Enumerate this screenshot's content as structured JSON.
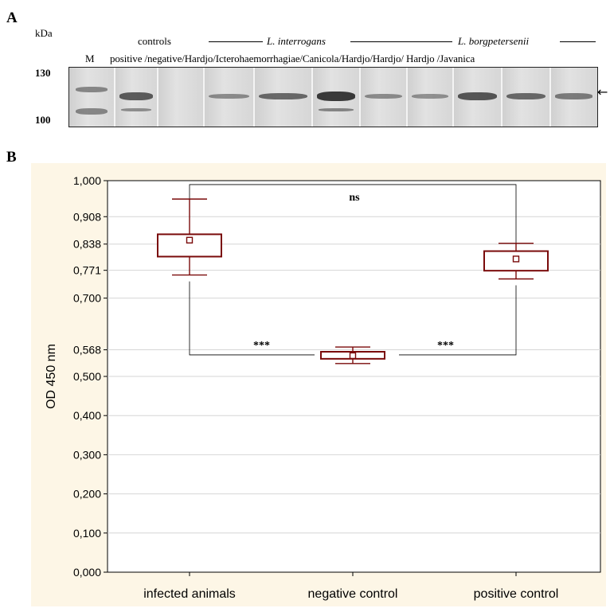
{
  "panel_a": {
    "letter": "A",
    "unit": "kDa",
    "marker_label": "M",
    "controls_label": "controls",
    "species_left": "L. interrogans",
    "species_right": "L. borgpetersenii",
    "lane_labels": "positive /negative/Hardjo/Icterohaemorrhagiae/Canicola/Hardjo/Hardjo/ Hardjo /Javanica",
    "mw_high": "130",
    "mw_low": "100",
    "arrow": "←",
    "band_intensity": [
      0.7,
      0.0,
      0.35,
      0.6,
      0.95,
      0.35,
      0.3,
      0.75,
      0.6,
      0.45
    ]
  },
  "panel_b": {
    "letter": "B"
  },
  "chart_data": {
    "type": "box",
    "ylabel": "OD 450 nm",
    "ylim": [
      0.0,
      1.0
    ],
    "yticks": [
      "0,000",
      "0,100",
      "0,200",
      "0,300",
      "0,400",
      "0,500",
      "0,568",
      "0,700",
      "0,771",
      "0,838",
      "0,908",
      "1,000"
    ],
    "ytick_values": [
      0.0,
      0.1,
      0.2,
      0.3,
      0.4,
      0.5,
      0.568,
      0.7,
      0.771,
      0.838,
      0.908,
      1.0
    ],
    "grid": true,
    "categories": [
      "infected animals",
      "negative control",
      "positive control"
    ],
    "boxes": [
      {
        "min": 0.759,
        "q1": 0.806,
        "median": 0.848,
        "q3": 0.863,
        "max": 0.953
      },
      {
        "min": 0.533,
        "q1": 0.545,
        "median": 0.553,
        "q3": 0.563,
        "max": 0.575
      },
      {
        "min": 0.749,
        "q1": 0.77,
        "median": 0.8,
        "q3": 0.82,
        "max": 0.84
      }
    ],
    "significance": [
      {
        "between": [
          0,
          2
        ],
        "label": "ns"
      },
      {
        "between": [
          0,
          1
        ],
        "label": "***"
      },
      {
        "between": [
          1,
          2
        ],
        "label": "***"
      }
    ],
    "box_color": "#7a0a0a",
    "background": "#fdf6e6"
  }
}
